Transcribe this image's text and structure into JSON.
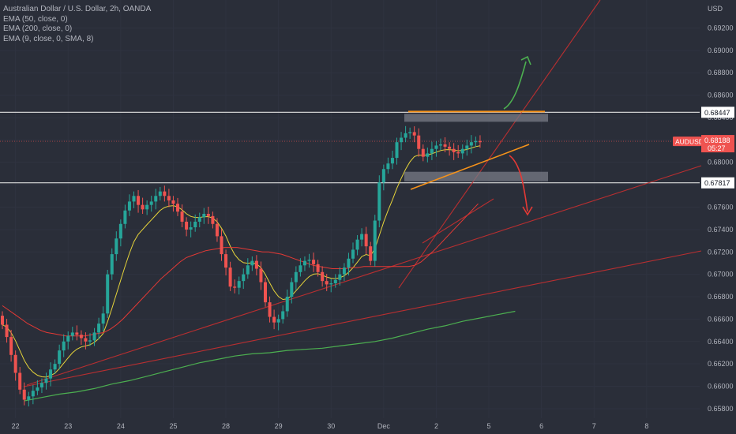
{
  "header": {
    "title": "Australian Dollar / U.S. Dollar, 2h, OANDA",
    "indicators": [
      "EMA (50, close, 0)",
      "EMA (200, close, 0)",
      "EMA (9, close, 0, SMA, 8)"
    ]
  },
  "price_axis": {
    "currency": "USD",
    "ticks": [
      "0.69200",
      "0.69000",
      "0.68800",
      "0.68600",
      "0.68400",
      "0.68200",
      "0.68000",
      "0.67800",
      "0.67600",
      "0.67400",
      "0.67200",
      "0.67000",
      "0.66800",
      "0.66600",
      "0.66400",
      "0.66200",
      "0.66000",
      "0.65800"
    ],
    "markers": [
      {
        "label": "0.68447",
        "value": 0.68447,
        "kind": "level"
      },
      {
        "label": "0.67817",
        "value": 0.67817,
        "kind": "level"
      },
      {
        "label": "AUDUSD",
        "value": 0.68188,
        "kind": "symbol"
      },
      {
        "label": "0.68188",
        "value": 0.68188,
        "kind": "price"
      },
      {
        "label": "05:27",
        "value": 0.68188,
        "kind": "countdown"
      }
    ]
  },
  "time_axis": {
    "ticks": [
      "22",
      "23",
      "24",
      "25",
      "28",
      "29",
      "30",
      "Dec",
      "2",
      "5",
      "6",
      "7",
      "8"
    ]
  },
  "colors": {
    "background": "#2a2e39",
    "up": "#26a69a",
    "down": "#ef5350",
    "ema50": "#e53935",
    "ema200": "#4caf50",
    "ema9": "#e6d43a",
    "level": "#e0e0e0",
    "orange": "#f7931a",
    "trend": "#d32f2f",
    "arrow_up": "#4caf50",
    "arrow_down": "#e53935",
    "zone": "#787b86"
  },
  "chart_data": {
    "type": "candlestick",
    "symbol": "AUDUSD",
    "title": "Australian Dollar / U.S. Dollar, 2h, OANDA",
    "ylim": [
      0.6575,
      0.6945
    ],
    "x_ticks": [
      {
        "label": "22",
        "bar": 3
      },
      {
        "label": "23",
        "bar": 15
      },
      {
        "label": "24",
        "bar": 27
      },
      {
        "label": "25",
        "bar": 39
      },
      {
        "label": "28",
        "bar": 51
      },
      {
        "label": "29",
        "bar": 63
      },
      {
        "label": "30",
        "bar": 75
      },
      {
        "label": "Dec",
        "bar": 87
      },
      {
        "label": "2",
        "bar": 99
      },
      {
        "label": "5",
        "bar": 111
      },
      {
        "label": "6",
        "bar": 123
      },
      {
        "label": "7",
        "bar": 135
      },
      {
        "label": "8",
        "bar": 147
      }
    ],
    "close": [
      0.6655,
      0.6644,
      0.6628,
      0.6612,
      0.6597,
      0.6588,
      0.6591,
      0.6596,
      0.6599,
      0.6603,
      0.6607,
      0.6615,
      0.662,
      0.6632,
      0.664,
      0.6645,
      0.6648,
      0.6646,
      0.6643,
      0.664,
      0.6641,
      0.6648,
      0.6656,
      0.6665,
      0.67,
      0.6718,
      0.6732,
      0.6745,
      0.6757,
      0.6765,
      0.677,
      0.6762,
      0.6758,
      0.6762,
      0.6765,
      0.677,
      0.6774,
      0.677,
      0.6766,
      0.6763,
      0.6756,
      0.6747,
      0.674,
      0.6742,
      0.6747,
      0.6751,
      0.6754,
      0.6752,
      0.6745,
      0.6734,
      0.6718,
      0.6706,
      0.6689,
      0.6688,
      0.6694,
      0.67,
      0.6708,
      0.6712,
      0.6705,
      0.6693,
      0.6675,
      0.6662,
      0.6657,
      0.666,
      0.6667,
      0.668,
      0.6693,
      0.6702,
      0.6708,
      0.6712,
      0.6713,
      0.6709,
      0.6702,
      0.6694,
      0.6691,
      0.6692,
      0.6695,
      0.67,
      0.6706,
      0.6714,
      0.6722,
      0.6731,
      0.6736,
      0.6725,
      0.6712,
      0.6748,
      0.6782,
      0.6794,
      0.6799,
      0.6804,
      0.6818,
      0.6822,
      0.6826,
      0.6827,
      0.6824,
      0.6812,
      0.6805,
      0.6808,
      0.6812,
      0.6815,
      0.6816,
      0.6814,
      0.6812,
      0.6809,
      0.6808,
      0.6812,
      0.6815,
      0.6818,
      0.6819,
      0.6818
    ],
    "ema50": [
      0.6672,
      0.6668,
      0.6664,
      0.666,
      0.6656,
      0.6653,
      0.665,
      0.6648,
      0.6647,
      0.6646,
      0.6645,
      0.6645,
      0.6645,
      0.6645,
      0.6646,
      0.6647,
      0.6648,
      0.6651,
      0.6655,
      0.666,
      0.6666,
      0.6672,
      0.6678,
      0.6684,
      0.669,
      0.6696,
      0.6701,
      0.6706,
      0.6711,
      0.6715,
      0.6717,
      0.6719,
      0.6721,
      0.6722,
      0.6723,
      0.6724,
      0.6724,
      0.6724,
      0.6723,
      0.6722,
      0.6721,
      0.672,
      0.672,
      0.6719,
      0.6718,
      0.6716,
      0.6714,
      0.6712,
      0.671,
      0.6708,
      0.6707,
      0.6706,
      0.6705,
      0.6705,
      0.6705,
      0.6706,
      0.6706,
      0.6707,
      0.6707,
      0.6707,
      0.6707,
      0.6707,
      0.6707,
      0.6707,
      0.6707,
      0.6708,
      0.6711,
      0.6716,
      0.6721,
      0.6727,
      0.6733,
      0.6739,
      0.6745,
      0.6751,
      0.6757,
      0.6763
    ],
    "ema200": [
      0.6587,
      0.659,
      0.6593,
      0.6595,
      0.6598,
      0.6602,
      0.6605,
      0.6609,
      0.6613,
      0.6617,
      0.6621,
      0.6624,
      0.6627,
      0.6629,
      0.663,
      0.6632,
      0.6633,
      0.6634,
      0.6636,
      0.6638,
      0.664,
      0.6643,
      0.6647,
      0.6651,
      0.6654,
      0.6658,
      0.6661,
      0.6664,
      0.6667
    ],
    "ema50_start_bar": 0,
    "ema200_start_bar": 0,
    "ema9_source": "close"
  }
}
